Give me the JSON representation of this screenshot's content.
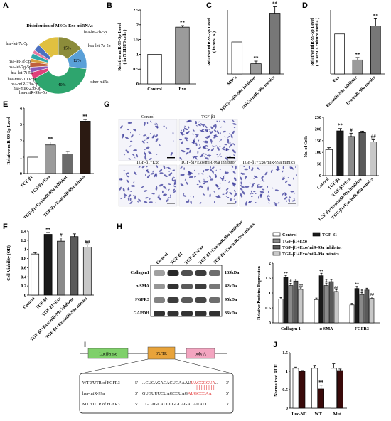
{
  "panels": {
    "A": {
      "letter": "A",
      "title": "Distribution of MSCs-Exo miRNAs",
      "chart_data": {
        "type": "pie",
        "labels": [
          "hsa-let-7b-5p",
          "hsa-let-7a-5p",
          "other miRs",
          "hsa-miR-99a-5p",
          "hsa-miR-23b-3p",
          "hsa-miR-23a-3p",
          "hsa-miR-100-5p",
          "hsa-let-7i-5p",
          "hsa-let-7g-5p",
          "hsa-let-7f-5p",
          "hsa-let-7c-5p"
        ],
        "values": [
          15,
          12,
          40,
          4,
          3,
          3,
          2,
          3,
          2,
          4,
          12
        ],
        "colors": [
          "#8c8c3a",
          "#5aa0d8",
          "#2ea56e",
          "#e0407a",
          "#8a5ab8",
          "#c0603c",
          "#d8a040",
          "#30a8a8",
          "#e87aa0",
          "#4c70c0",
          "#e0c040"
        ],
        "slice_labels": [
          "15%",
          "12%",
          "40%",
          "",
          "",
          "",
          "",
          "",
          "",
          "",
          ""
        ]
      }
    },
    "B": {
      "letter": "B",
      "chart_data": {
        "type": "bar",
        "categories": [
          "Control",
          "Exo"
        ],
        "values": [
          1.0,
          1.92
        ],
        "errors": [
          0,
          0.05
        ],
        "ylabel": "Relative miR-99-5p Level",
        "ylabel2": "( in NIH3T3 cells )",
        "ylim": [
          0,
          2.5
        ],
        "yticks": [
          0,
          0.5,
          1.0,
          1.5,
          2.0,
          2.5
        ],
        "fills": [
          "#ffffff",
          "#9b9b9b"
        ],
        "sig": [
          "",
          "**"
        ]
      }
    },
    "C": {
      "letter": "C",
      "chart_data": {
        "type": "bar",
        "categories": [
          "MSCs",
          "MSCs+miR-99a inhibitor",
          "MSCs+miR-99a mimics"
        ],
        "values": [
          1.0,
          0.32,
          1.9
        ],
        "errors": [
          0,
          0.08,
          0.2
        ],
        "ylabel": "Relative miR-99-5p Level",
        "ylabel2": "( in MSCs )",
        "ylim": [
          0,
          2.0
        ],
        "yticks": [],
        "fills": [
          "#ffffff",
          "#9b9b9b",
          "#777777"
        ],
        "sig": [
          "",
          "**",
          "**"
        ]
      }
    },
    "D": {
      "letter": "D",
      "chart_data": {
        "type": "bar",
        "categories": [
          "Exo",
          "Exo/miR-99a inhibitor",
          "Exo/miR-99a mimics"
        ],
        "values": [
          1.0,
          0.35,
          1.2
        ],
        "errors": [
          0,
          0.06,
          0.18
        ],
        "ylabel": "Relative miR-99-5p Level",
        "ylabel2": "( in MSCs culture media )",
        "ylim": [
          0,
          1.6
        ],
        "yticks": [],
        "fills": [
          "#ffffff",
          "#9b9b9b",
          "#777777"
        ],
        "sig": [
          "",
          "**",
          "**"
        ]
      }
    },
    "E": {
      "letter": "E",
      "chart_data": {
        "type": "bar",
        "categories": [
          "TGF-β1",
          "TGF-β1+Exo",
          "TGF-β1+Exo/miR-99a inhibitor",
          "TGF-β1+Exo/miR-99a mimics"
        ],
        "values": [
          1.0,
          1.75,
          1.2,
          3.2
        ],
        "errors": [
          0,
          0.18,
          0.15,
          0.1
        ],
        "ylabel": "Relative miR-99-5p Level",
        "ylim": [
          0,
          4
        ],
        "yticks": [
          0,
          1,
          2,
          3,
          4
        ],
        "fills": [
          "#ffffff",
          "#9b9b9b",
          "#6b6b6b",
          "#2b1a12"
        ],
        "sig": [
          "",
          "**",
          "",
          "**"
        ]
      }
    },
    "G": {
      "letter": "G",
      "images": [
        {
          "label": "Control"
        },
        {
          "label": "TGF-β1"
        },
        {
          "label": "TGF-β1+Exo"
        },
        {
          "label": "TGF-β1+Exo/miR-99a inhibitor"
        },
        {
          "label": "TGF-β1+Exo/miR-99a mimics"
        }
      ],
      "chart_data": {
        "type": "bar",
        "categories": [
          "Control",
          "TGF-β1",
          "TGF-β1+Exo",
          "TGF-β1+Exo/miR-99a inhibitor",
          "TGF-β1+Exo/miR-99a mimics"
        ],
        "values": [
          112,
          192,
          168,
          185,
          145
        ],
        "errors": [
          8,
          10,
          14,
          6,
          9
        ],
        "ylabel": "No. of Cells",
        "ylim": [
          0,
          250
        ],
        "yticks": [
          0,
          50,
          100,
          150,
          200,
          250
        ],
        "fills": [
          "#ffffff",
          "#1a1a1a",
          "#8a8a8a",
          "#5a5a5a",
          "#c8c8c8"
        ],
        "sig": [
          "",
          "**",
          "#",
          "",
          "##"
        ]
      }
    },
    "F": {
      "letter": "F",
      "chart_data": {
        "type": "bar",
        "categories": [
          "Control",
          "TGF-β1",
          "TGF-β1+Exo",
          "TGF-β1+Exo/miR-99a inhibitor",
          "TGF-β1+Exo/miR-99a mimics"
        ],
        "values": [
          0.9,
          1.33,
          1.18,
          1.28,
          1.05
        ],
        "errors": [
          0.03,
          0.04,
          0.07,
          0.06,
          0.05
        ],
        "ylabel": "Cell Viability (OD)",
        "ylim": [
          0,
          1.4
        ],
        "yticks": [
          0,
          0.2,
          0.4,
          0.6,
          0.8,
          1.0,
          1.2,
          1.4
        ],
        "fills": [
          "#ffffff",
          "#1a1a1a",
          "#8a8a8a",
          "#5a5a5a",
          "#c8c8c8"
        ],
        "sig": [
          "",
          "**",
          "#",
          "",
          "##"
        ]
      }
    },
    "H": {
      "letter": "H",
      "blot_lanes": [
        "Control",
        "TGF-β1",
        "TGF-β1+Exo",
        "TGF-β1+Exo/miR-99a inhibitor",
        "TGF-β1+Exo/miR-99a mimics"
      ],
      "blot_rows": [
        {
          "protein": "Collagen1",
          "kda": "139kDa"
        },
        {
          "protein": "α-SMA",
          "kda": "42kDa"
        },
        {
          "protein": "FGFR3",
          "kda": "95kDa"
        },
        {
          "protein": "GAPDH",
          "kda": "36kDa"
        }
      ],
      "legend": [
        "Control",
        "TGF-β1",
        "TGF-β1+Exo",
        "TGF-β1+Exo/miR-99a inhibitor",
        "TGF-β1+Exo/miR-99a mimics"
      ],
      "chart_data": {
        "type": "bar",
        "categories": [
          "Collagen 1",
          "α-SMA",
          "FGFR3"
        ],
        "series": [
          {
            "name": "Control",
            "values": [
              0.8,
              0.78,
              0.6
            ],
            "errors": [
              0.05,
              0.05,
              0.05
            ]
          },
          {
            "name": "TGF-β1",
            "values": [
              1.52,
              1.58,
              1.15
            ],
            "errors": [
              0.06,
              0.08,
              0.07
            ]
          },
          {
            "name": "TGF-β1+Exo",
            "values": [
              1.25,
              1.25,
              0.95
            ],
            "errors": [
              0.07,
              0.08,
              0.06
            ]
          },
          {
            "name": "TGF-β1+Exo/miR-99a inhibitor",
            "values": [
              1.4,
              1.38,
              1.1
            ],
            "errors": [
              0.06,
              0.07,
              0.06
            ]
          },
          {
            "name": "TGF-β1+Exo/miR-99a mimics",
            "values": [
              1.12,
              1.05,
              0.82
            ],
            "errors": [
              0.05,
              0.06,
              0.05
            ]
          }
        ],
        "fills": [
          "#ffffff",
          "#1a1a1a",
          "#8a8a8a",
          "#5a5a5a",
          "#c8c8c8"
        ],
        "sig": [
          [
            "",
            "**",
            "#",
            "",
            "##"
          ],
          [
            "",
            "**",
            "#",
            "",
            "##"
          ],
          [
            "",
            "**",
            "#",
            "",
            "##"
          ]
        ],
        "ylabel": "Relative Proteins Expression",
        "ylim": [
          0,
          2.0
        ],
        "yticks": [
          0,
          0.5,
          1.0,
          1.5,
          2.0
        ]
      }
    },
    "I": {
      "letter": "I",
      "construct": [
        "Luciferase",
        "3'UTR",
        "poly A"
      ],
      "alignment": [
        {
          "name": "WT 3'UTR of FGFR3",
          "end": "5'",
          "seq": "...CUCAGAGACUGAAAUUACGGGUA...",
          "hl": "UACGGGUA",
          "end2": "3'"
        },
        {
          "name": "hsa-miR-99a",
          "end": "3'",
          "seq": "GUGUUUCUAGCCUAGAUGCCCAA",
          "hl": "AUGCCCAA",
          "end2": "5'"
        },
        {
          "name": "MT 3'UTR of FGFR3",
          "end": "5'",
          "seq": "...GCAGCAUCCGGCAGACAUATT...",
          "hl": "",
          "end2": "3'"
        }
      ]
    },
    "J": {
      "letter": "J",
      "chart_data": {
        "type": "bar",
        "categories": [
          "Luc-NC",
          "WT",
          "Mut"
        ],
        "series": [
          {
            "name": "NC",
            "values": [
              1.08,
              1.08,
              1.08
            ],
            "errors": [
              0.03,
              0.08,
              0.12
            ]
          },
          {
            "name": "mimics",
            "values": [
              1.0,
              0.52,
              1.02
            ],
            "errors": [
              0.02,
              0.1,
              0.04
            ]
          }
        ],
        "fills": [
          "#ffffff",
          "#3a0a0a"
        ],
        "ylabel": "Normalized RLU",
        "ylim": [
          0,
          1.5
        ],
        "yticks": [
          0,
          0.5,
          1.0,
          1.5
        ],
        "sig": [
          "",
          "**",
          ""
        ]
      }
    }
  }
}
